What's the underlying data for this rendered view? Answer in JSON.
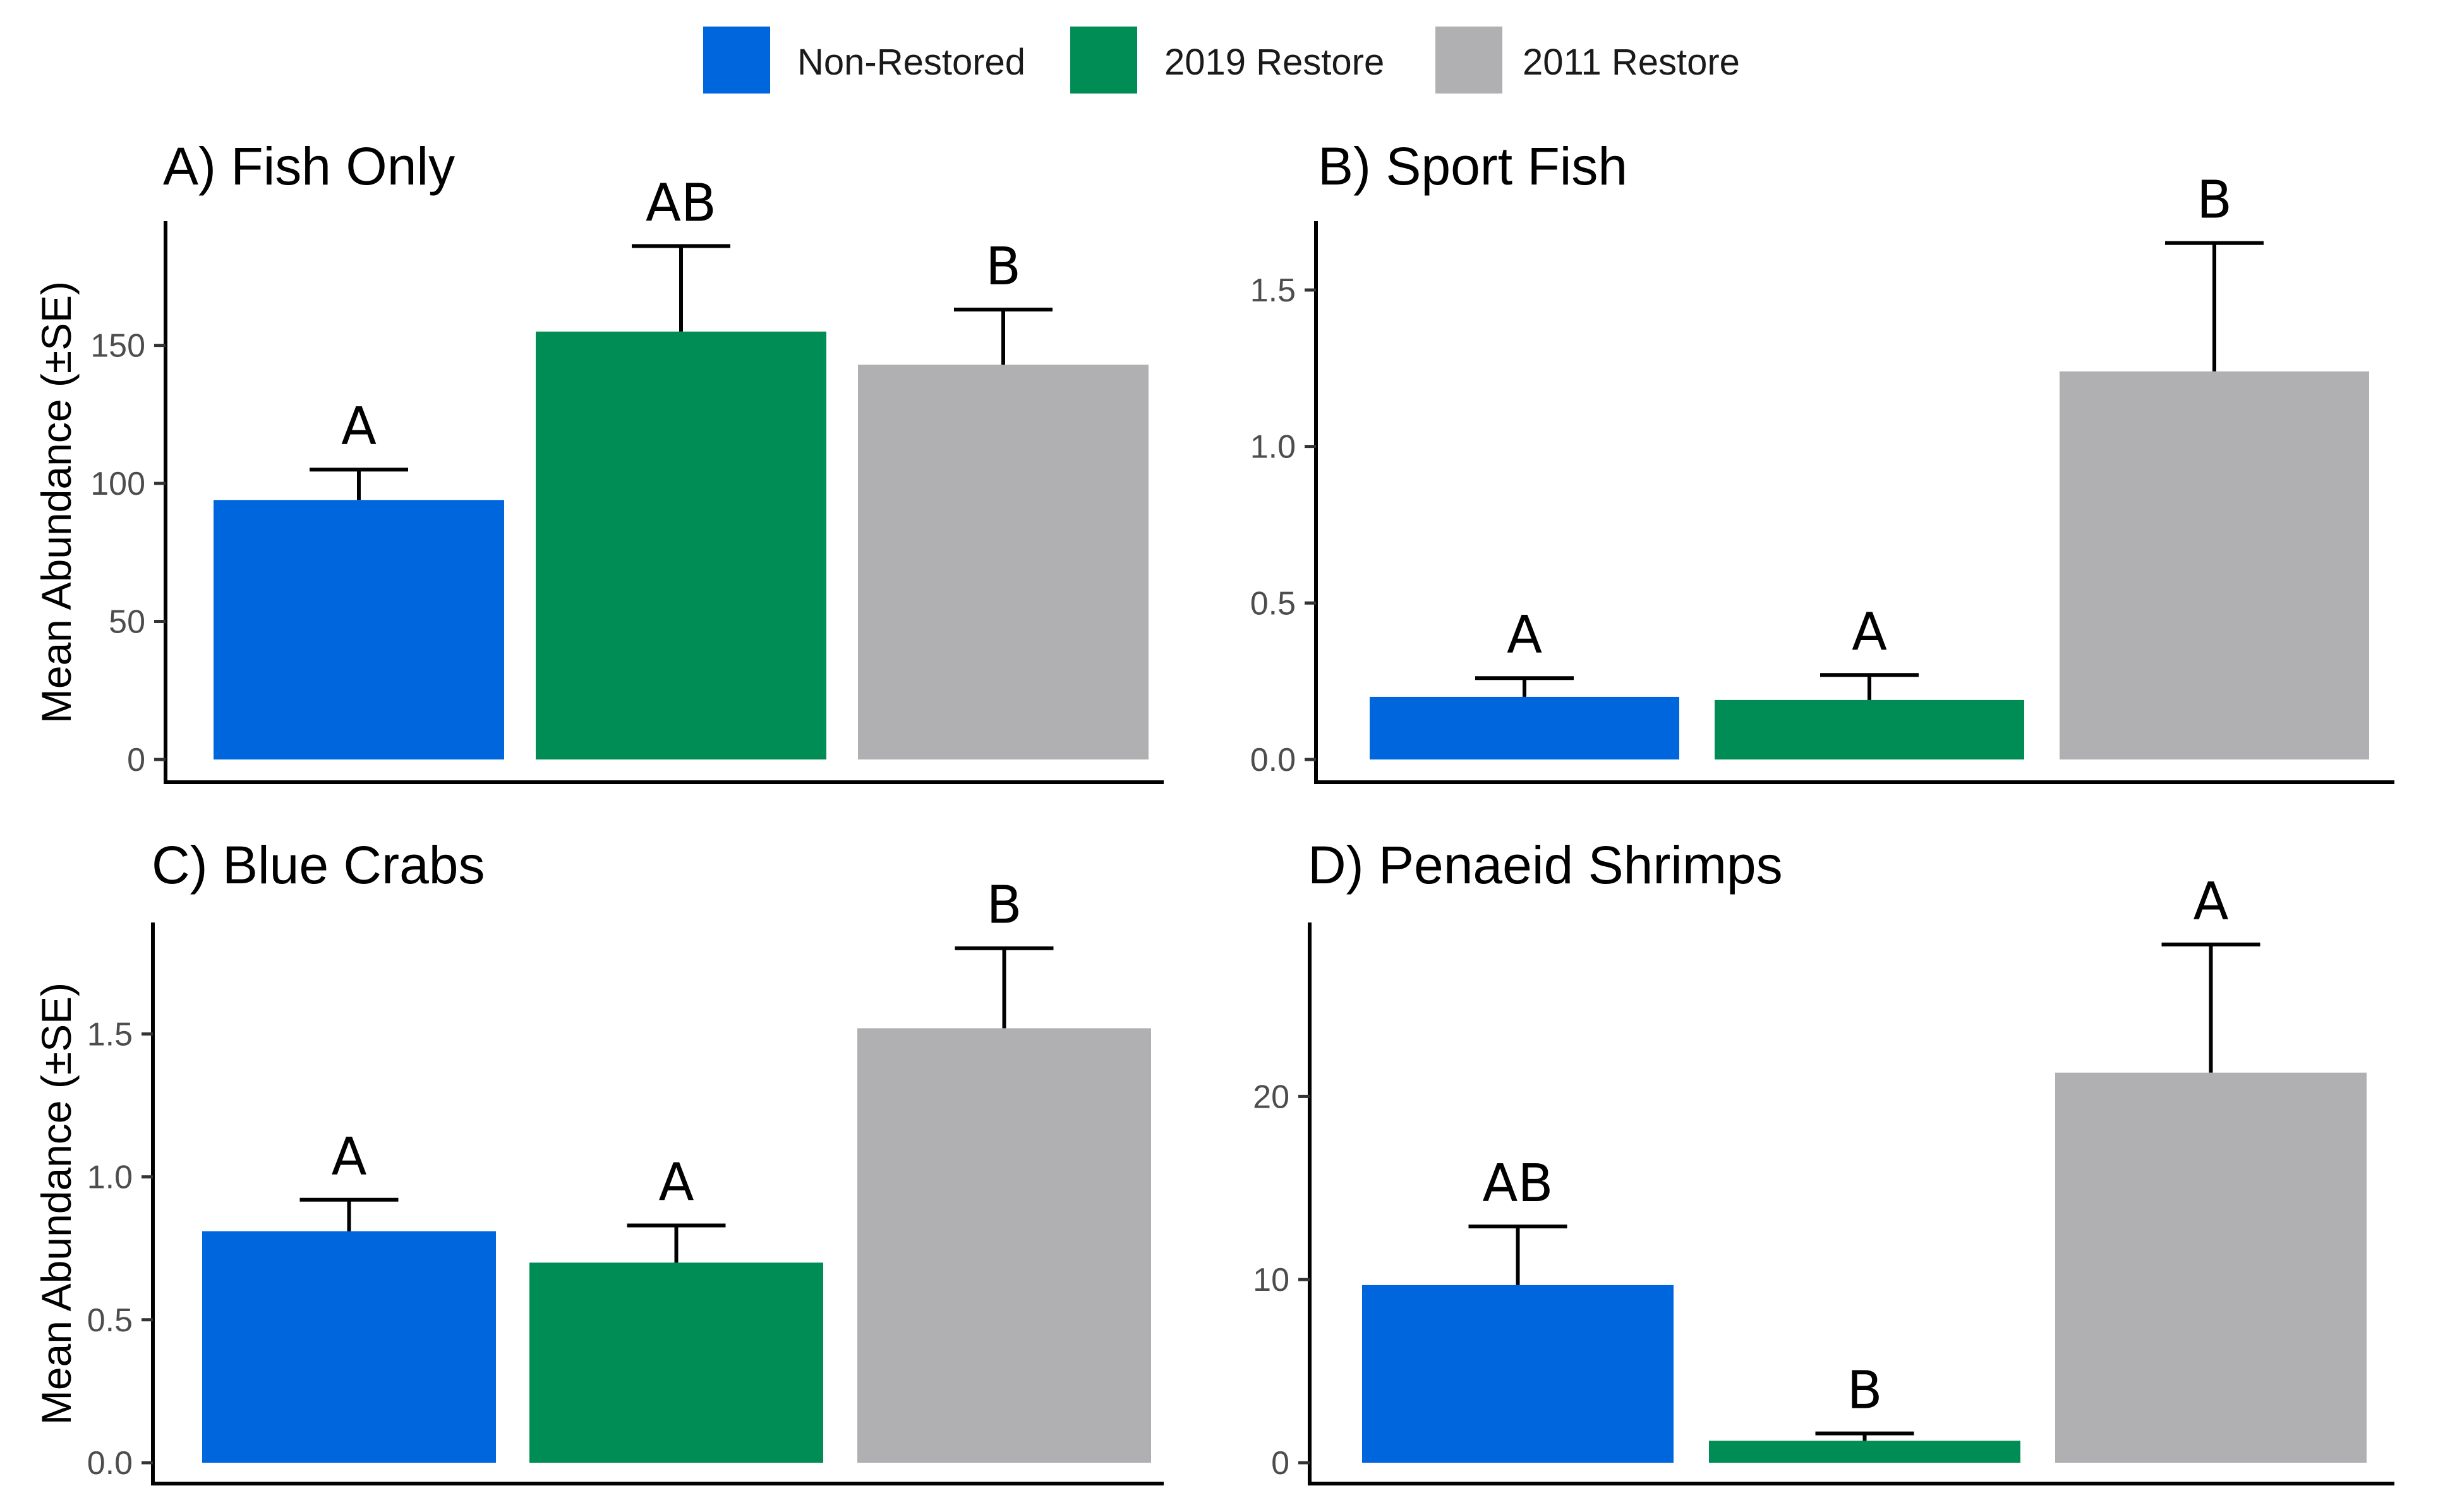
{
  "legend": {
    "items": [
      {
        "label": "Non-Restored",
        "color": "#0066dd"
      },
      {
        "label": "2019 Restore",
        "color": "#008c55"
      },
      {
        "label": "2011 Restore",
        "color": "#b0b0b2"
      }
    ]
  },
  "chart_data": [
    {
      "type": "bar",
      "title": "A) Fish Only",
      "ylabel": "Mean Abundance (±SE)",
      "xlabel": "",
      "ylim": [
        0,
        195
      ],
      "yticks": [
        0,
        50,
        100,
        150
      ],
      "ytick_labels": [
        "0",
        "50",
        "100",
        "150"
      ],
      "categories": [
        "Non-Restored",
        "2019 Restore",
        "2011 Restore"
      ],
      "values": [
        94,
        155,
        143
      ],
      "errors": [
        11,
        31,
        20
      ],
      "letters": [
        "A",
        "AB",
        "B"
      ]
    },
    {
      "type": "bar",
      "title": "B) Sport Fish",
      "ylabel": "",
      "xlabel": "",
      "ylim": [
        0,
        1.72
      ],
      "yticks": [
        0,
        0.5,
        1.0,
        1.5
      ],
      "ytick_labels": [
        "0.0",
        "0.5",
        "1.0",
        "1.5"
      ],
      "categories": [
        "Non-Restored",
        "2019 Restore",
        "2011 Restore"
      ],
      "values": [
        0.2,
        0.19,
        1.24
      ],
      "errors": [
        0.06,
        0.08,
        0.41
      ],
      "letters": [
        "A",
        "A",
        "B"
      ]
    },
    {
      "type": "bar",
      "title": "C) Blue Crabs",
      "ylabel": "Mean Abundance (±SE)",
      "xlabel": "",
      "ylim": [
        0,
        1.89
      ],
      "yticks": [
        0,
        0.5,
        1.0,
        1.5
      ],
      "ytick_labels": [
        "0.0",
        "0.5",
        "1.0",
        "1.5"
      ],
      "categories": [
        "Non-Restored",
        "2019 Restore",
        "2011 Restore"
      ],
      "values": [
        0.81,
        0.7,
        1.52
      ],
      "errors": [
        0.11,
        0.13,
        0.28
      ],
      "letters": [
        "A",
        "A",
        "B"
      ]
    },
    {
      "type": "bar",
      "title": "D) Penaeid Shrimps",
      "ylabel": "",
      "xlabel": "",
      "ylim": [
        0,
        29.5
      ],
      "yticks": [
        0,
        10,
        20
      ],
      "ytick_labels": [
        "0",
        "10",
        "20"
      ],
      "categories": [
        "Non-Restored",
        "2019 Restore",
        "2011 Restore"
      ],
      "values": [
        9.7,
        1.2,
        21.3
      ],
      "errors": [
        3.2,
        0.4,
        7.0
      ],
      "letters": [
        "AB",
        "B",
        "A"
      ]
    }
  ]
}
